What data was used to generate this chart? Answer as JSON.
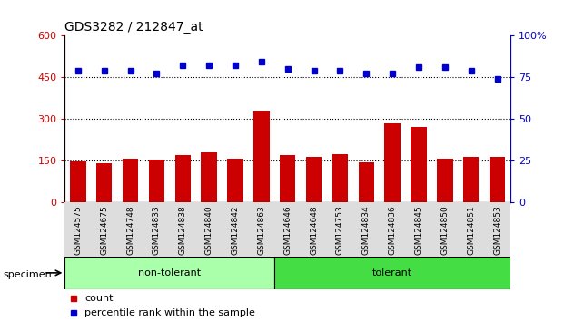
{
  "title": "GDS3282 / 212847_at",
  "categories": [
    "GSM124575",
    "GSM124675",
    "GSM124748",
    "GSM124833",
    "GSM124838",
    "GSM124840",
    "GSM124842",
    "GSM124863",
    "GSM124646",
    "GSM124648",
    "GSM124753",
    "GSM124834",
    "GSM124836",
    "GSM124845",
    "GSM124850",
    "GSM124851",
    "GSM124853"
  ],
  "bar_values": [
    148,
    140,
    158,
    152,
    168,
    180,
    155,
    330,
    168,
    162,
    172,
    145,
    285,
    270,
    155,
    162,
    162
  ],
  "percentile_values": [
    79,
    79,
    79,
    77,
    82,
    82,
    82,
    84,
    80,
    79,
    79,
    77,
    77,
    81,
    81,
    79,
    74
  ],
  "non_tolerant_count": 8,
  "tolerant_count": 9,
  "bar_color": "#cc0000",
  "dot_color": "#0000cc",
  "left_ylim": [
    0,
    600
  ],
  "right_ylim": [
    0,
    100
  ],
  "left_yticks": [
    0,
    150,
    300,
    450,
    600
  ],
  "right_yticks": [
    0,
    25,
    50,
    75,
    100
  ],
  "left_yticklabels": [
    "0",
    "150",
    "300",
    "450",
    "600"
  ],
  "right_yticklabels": [
    "0",
    "25",
    "50",
    "75",
    "100%"
  ],
  "grid_values": [
    150,
    300,
    450
  ],
  "non_tolerant_color": "#aaffaa",
  "tolerant_color": "#44dd44",
  "specimen_label": "specimen",
  "legend_count_label": "count",
  "legend_percentile_label": "percentile rank within the sample"
}
